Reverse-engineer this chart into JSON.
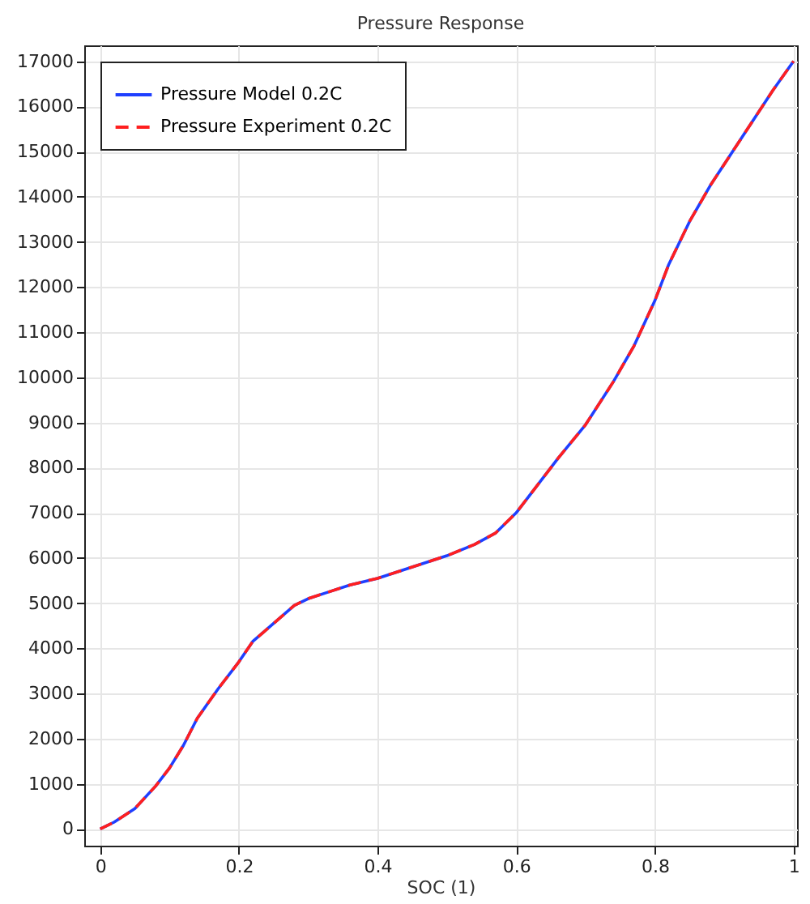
{
  "chart_data": {
    "type": "line",
    "title": "Pressure Response",
    "xlabel": "SOC (1)",
    "xlim": [
      -0.023,
      1.005
    ],
    "ylim": [
      -370,
      17350
    ],
    "xticks": [
      0,
      0.2,
      0.4,
      0.6,
      0.8,
      1
    ],
    "yticks": [
      0,
      1000,
      2000,
      3000,
      4000,
      5000,
      6000,
      7000,
      8000,
      9000,
      10000,
      11000,
      12000,
      13000,
      14000,
      15000,
      16000,
      17000
    ],
    "grid": true,
    "legend": "top left",
    "x": [
      0,
      0.02,
      0.05,
      0.08,
      0.1,
      0.12,
      0.14,
      0.17,
      0.2,
      0.22,
      0.25,
      0.28,
      0.3,
      0.33,
      0.36,
      0.4,
      0.45,
      0.5,
      0.54,
      0.57,
      0.6,
      0.63,
      0.66,
      0.7,
      0.74,
      0.77,
      0.8,
      0.82,
      0.85,
      0.88,
      0.91,
      0.94,
      0.97,
      1.0
    ],
    "series": [
      {
        "name": "Pressure Model 0.2C",
        "color": "#1f3fff",
        "line_style": "solid",
        "values": [
          0,
          150,
          450,
          950,
          1350,
          1850,
          2450,
          3100,
          3700,
          4150,
          4550,
          4950,
          5100,
          5250,
          5400,
          5550,
          5800,
          6050,
          6300,
          6550,
          7000,
          7600,
          8200,
          8950,
          9900,
          10700,
          11700,
          12500,
          13450,
          14250,
          14950,
          15650,
          16350,
          17000
        ]
      },
      {
        "name": "Pressure Experiment 0.2C",
        "color": "#ff1f1f",
        "line_style": "dashed",
        "values": [
          0,
          150,
          450,
          950,
          1350,
          1850,
          2450,
          3100,
          3700,
          4150,
          4550,
          4950,
          5100,
          5250,
          5400,
          5550,
          5800,
          6050,
          6300,
          6550,
          7000,
          7600,
          8200,
          8950,
          9900,
          10700,
          11700,
          12500,
          13450,
          14250,
          14950,
          15650,
          16350,
          17000
        ]
      }
    ]
  }
}
